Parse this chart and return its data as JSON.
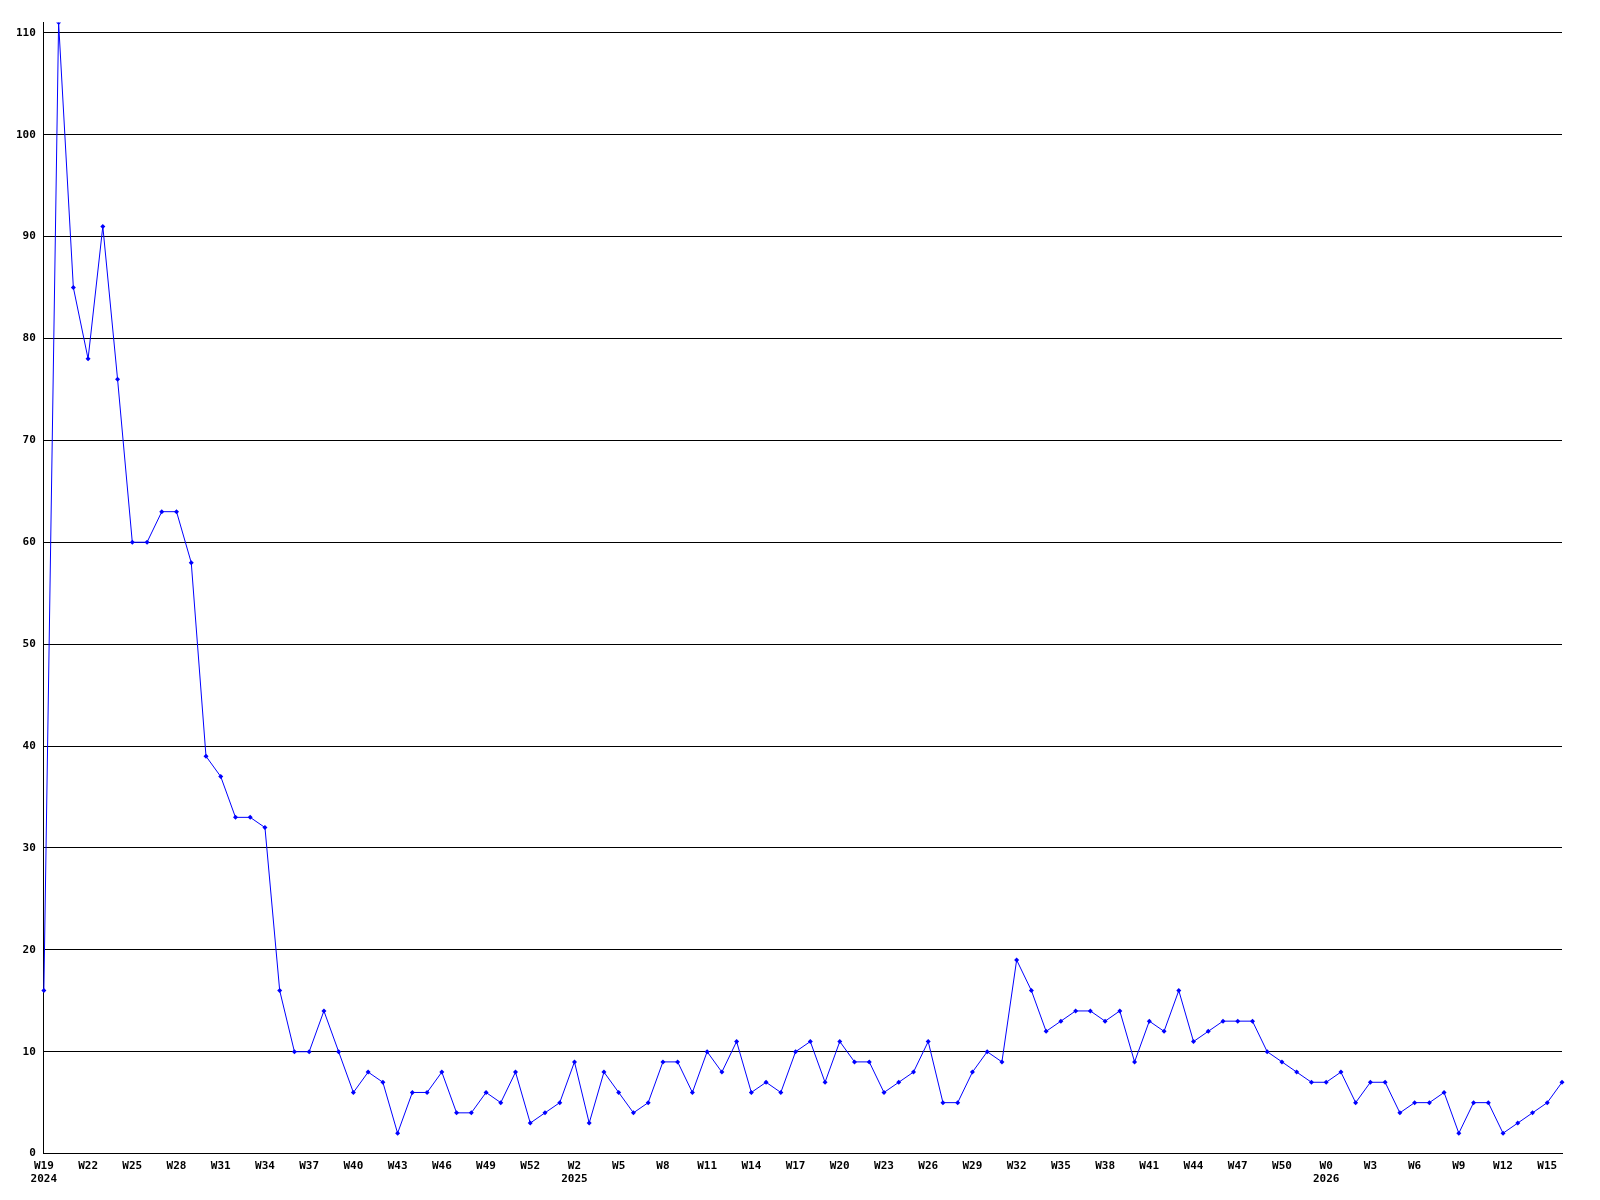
{
  "chart_data": {
    "type": "line",
    "categories": [
      "W19\n2024",
      null,
      null,
      "W22",
      null,
      null,
      "W25",
      null,
      null,
      "W28",
      null,
      null,
      "W31",
      null,
      null,
      "W34",
      null,
      null,
      "W37",
      null,
      null,
      "W40",
      null,
      null,
      "W43",
      null,
      null,
      "W46",
      null,
      null,
      "W49",
      null,
      null,
      "W52",
      null,
      null,
      "W2\n2025",
      null,
      null,
      "W5",
      null,
      null,
      "W8",
      null,
      null,
      "W11",
      null,
      null,
      "W14",
      null,
      null,
      "W17",
      null,
      null,
      "W20",
      null,
      null,
      "W23",
      null,
      null,
      "W26",
      null,
      null,
      "W29",
      null,
      null,
      "W32",
      null,
      null,
      "W35",
      null,
      null,
      "W38",
      null,
      null,
      "W41",
      null,
      null,
      "W44",
      null,
      null,
      "W47",
      null,
      null,
      "W50",
      null,
      null,
      "W0\n2026",
      null,
      null,
      "W3",
      null,
      null,
      "W6",
      null,
      null,
      "W9",
      null,
      null,
      "W12",
      null,
      null,
      "W15",
      null
    ],
    "series": [
      {
        "color": "#0000ff",
        "values": [
          16,
          111,
          85,
          78,
          91,
          76,
          60,
          60,
          63,
          63,
          58,
          39,
          37,
          33,
          33,
          32,
          16,
          10,
          10,
          14,
          10,
          6,
          8,
          7,
          2,
          6,
          6,
          8,
          4,
          4,
          6,
          5,
          8,
          3,
          4,
          5,
          9,
          3,
          8,
          6,
          4,
          5,
          9,
          9,
          6,
          10,
          8,
          11,
          6,
          7,
          6,
          10,
          11,
          7,
          11,
          9,
          9,
          6,
          7,
          8,
          11,
          5,
          5,
          8,
          10,
          9,
          19,
          16,
          12,
          13,
          14,
          14,
          13,
          14,
          9,
          13,
          12,
          16,
          11,
          12,
          13,
          13,
          13,
          10,
          9,
          8,
          7,
          7,
          8,
          5,
          7,
          7,
          4,
          5,
          5,
          6,
          2,
          5,
          5,
          2,
          3,
          4,
          5,
          7
        ]
      }
    ],
    "ylim": [
      0,
      111
    ],
    "yticks": [
      0,
      10,
      20,
      30,
      40,
      50,
      60,
      70,
      80,
      90,
      100,
      110
    ],
    "grid": "y",
    "legend": false,
    "marker": "diamond",
    "line_style": "solid"
  }
}
